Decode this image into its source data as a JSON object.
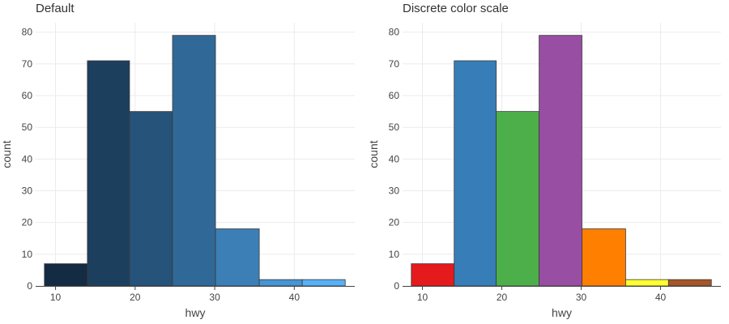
{
  "chart_data": [
    {
      "type": "bar",
      "title": "Default",
      "xlabel": "hwy",
      "ylabel": "count",
      "bins": [
        [
          8.6,
          14.0
        ],
        [
          14.0,
          19.3
        ],
        [
          19.3,
          24.7
        ],
        [
          24.7,
          30.1
        ],
        [
          30.1,
          35.6
        ],
        [
          35.6,
          41.0
        ],
        [
          41.0,
          46.4
        ]
      ],
      "values": [
        7,
        71,
        55,
        79,
        18,
        2,
        2
      ],
      "colors": [
        "#132b43",
        "#1d3f5e",
        "#26537a",
        "#306997",
        "#3b7fb6",
        "#4695d4",
        "#56b1f7"
      ],
      "xticks": [
        10,
        20,
        30,
        40
      ],
      "yticks": [
        0,
        10,
        20,
        30,
        40,
        50,
        60,
        70,
        80
      ],
      "xlim": [
        7.5,
        47.6
      ],
      "ylim": [
        0,
        83
      ],
      "grid": true
    },
    {
      "type": "bar",
      "title": "Discrete color scale",
      "xlabel": "hwy",
      "ylabel": "count",
      "bins": [
        [
          8.6,
          14.0
        ],
        [
          14.0,
          19.3
        ],
        [
          19.3,
          24.7
        ],
        [
          24.7,
          30.1
        ],
        [
          30.1,
          35.6
        ],
        [
          35.6,
          41.0
        ],
        [
          41.0,
          46.4
        ]
      ],
      "values": [
        7,
        71,
        55,
        79,
        18,
        2,
        2
      ],
      "colors": [
        "#e41a1c",
        "#377eb8",
        "#4daf4a",
        "#984ea3",
        "#ff7f00",
        "#ffff33",
        "#a65628"
      ],
      "xticks": [
        10,
        20,
        30,
        40
      ],
      "yticks": [
        0,
        10,
        20,
        30,
        40,
        50,
        60,
        70,
        80
      ],
      "xlim": [
        7.5,
        47.6
      ],
      "ylim": [
        0,
        83
      ],
      "grid": true
    }
  ]
}
